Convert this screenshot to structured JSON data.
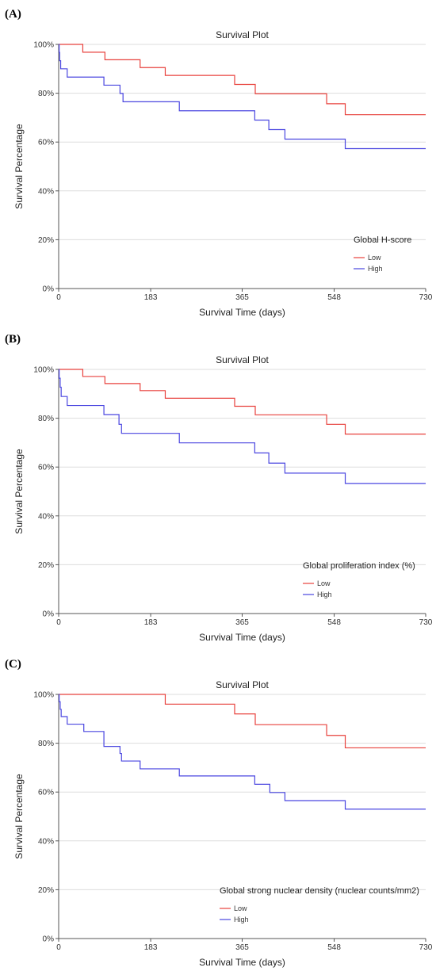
{
  "colors": {
    "low": "#e8413c",
    "high": "#4a46e0",
    "grid": "#dddddd",
    "axis": "#555555"
  },
  "chart_data": [
    {
      "panel": "(A)",
      "type": "line",
      "step": true,
      "title": "Survival Plot",
      "xlabel": "Survival Time (days)",
      "ylabel": "Survival Percentage",
      "xlim": [
        0,
        730
      ],
      "ylim": [
        0,
        100
      ],
      "xticks": [
        0,
        183,
        365,
        548,
        730
      ],
      "yticks": [
        0,
        20,
        40,
        60,
        80,
        100
      ],
      "ytick_labels": [
        "0%",
        "20%",
        "40%",
        "60%",
        "80%",
        "100%"
      ],
      "grid": true,
      "legend": {
        "title": "Global H-score",
        "placement": "lower-right"
      },
      "series": [
        {
          "name": "Low",
          "color": "#e8413c",
          "x": [
            0,
            48,
            92,
            162,
            212,
            350,
            391,
            533,
            570,
            730
          ],
          "y": [
            100,
            96.8,
            93.7,
            90.5,
            87.3,
            83.6,
            79.8,
            75.7,
            71.2,
            71.2
          ]
        },
        {
          "name": "High",
          "color": "#4a46e0",
          "x": [
            0,
            1,
            2,
            4,
            17,
            90,
            122,
            128,
            240,
            390,
            418,
            450,
            570,
            730
          ],
          "y": [
            100,
            96.7,
            93.3,
            90.0,
            86.6,
            83.3,
            79.9,
            76.5,
            72.8,
            69.0,
            65.1,
            61.2,
            57.3,
            57.3
          ]
        }
      ]
    },
    {
      "panel": "(B)",
      "type": "line",
      "step": true,
      "title": "Survival Plot",
      "xlabel": "Survival Time (days)",
      "ylabel": "Survival Percentage",
      "xlim": [
        0,
        730
      ],
      "ylim": [
        0,
        100
      ],
      "xticks": [
        0,
        183,
        365,
        548,
        730
      ],
      "yticks": [
        0,
        20,
        40,
        60,
        80,
        100
      ],
      "ytick_labels": [
        "0%",
        "20%",
        "40%",
        "60%",
        "80%",
        "100%"
      ],
      "grid": true,
      "legend": {
        "title": "Global proliferation index (%)",
        "placement": "lower-right"
      },
      "series": [
        {
          "name": "Low",
          "color": "#e8413c",
          "x": [
            0,
            48,
            92,
            162,
            212,
            350,
            391,
            533,
            570,
            730
          ],
          "y": [
            100,
            97.1,
            94.2,
            91.3,
            88.2,
            84.9,
            81.4,
            77.5,
            73.5,
            73.5
          ]
        },
        {
          "name": "High",
          "color": "#4a46e0",
          "x": [
            0,
            1,
            3,
            5,
            17,
            90,
            120,
            125,
            240,
            390,
            418,
            450,
            570,
            730
          ],
          "y": [
            100,
            96.4,
            92.7,
            88.9,
            85.2,
            81.5,
            77.5,
            73.8,
            69.9,
            65.8,
            61.6,
            57.5,
            53.3,
            53.3
          ]
        }
      ]
    },
    {
      "panel": "(C)",
      "type": "line",
      "step": true,
      "title": "Survival Plot",
      "xlabel": "Survival Time (days)",
      "ylabel": "Survival Percentage",
      "xlim": [
        0,
        730
      ],
      "ylim": [
        0,
        100
      ],
      "xticks": [
        0,
        183,
        365,
        548,
        730
      ],
      "yticks": [
        0,
        20,
        40,
        60,
        80,
        100
      ],
      "ytick_labels": [
        "0%",
        "20%",
        "40%",
        "60%",
        "80%",
        "100%"
      ],
      "grid": true,
      "legend": {
        "title": "Global strong nuclear density (nuclear counts/mm2)",
        "placement": "lower-right"
      },
      "series": [
        {
          "name": "Low",
          "color": "#e8413c",
          "x": [
            0,
            212,
            350,
            391,
            533,
            570,
            730
          ],
          "y": [
            100,
            96.0,
            92.0,
            87.6,
            83.2,
            78.1,
            78.1
          ]
        },
        {
          "name": "High",
          "color": "#4a46e0",
          "x": [
            0,
            1,
            3,
            5,
            17,
            50,
            90,
            122,
            125,
            162,
            240,
            390,
            420,
            450,
            570,
            730
          ],
          "y": [
            100,
            97.0,
            93.9,
            90.9,
            87.8,
            84.8,
            78.7,
            75.8,
            72.7,
            69.5,
            66.6,
            63.2,
            59.8,
            56.5,
            53.0,
            53.0
          ]
        }
      ]
    }
  ]
}
